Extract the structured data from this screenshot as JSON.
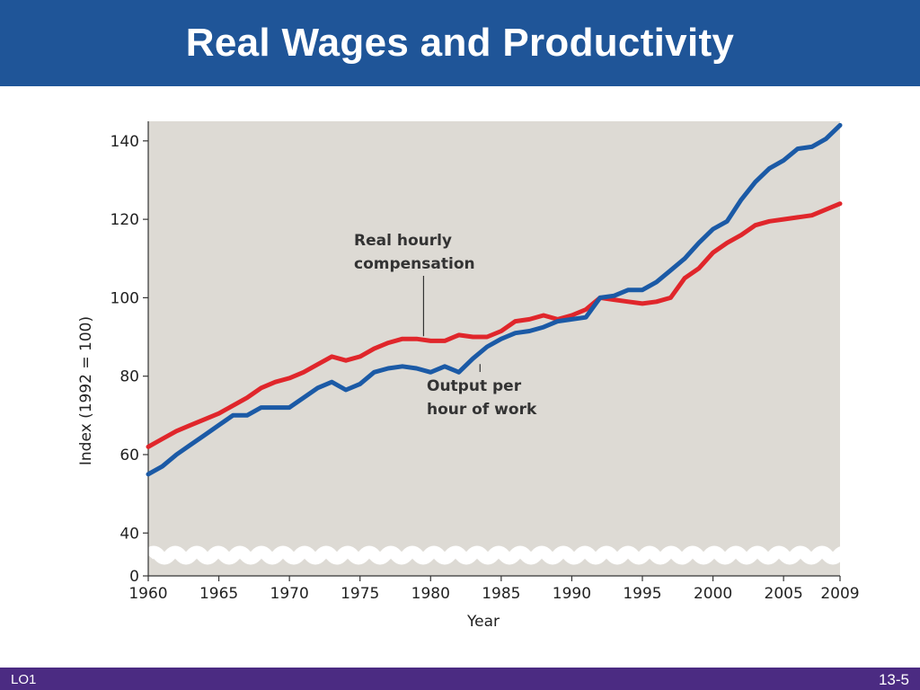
{
  "slide": {
    "title": "Real Wages and Productivity",
    "lo_label": "LO1",
    "page_number": "13-5"
  },
  "colors": {
    "title_bar": "#1f5598",
    "footer_bar": "#4b2b82",
    "plot_bg": "#dddad4",
    "compensation_line": "#e0262b",
    "output_line": "#1b5aa6"
  },
  "chart_data": {
    "type": "line",
    "title": "",
    "xlabel": "Year",
    "ylabel": "Index (1992 = 100)",
    "xlim": [
      1960,
      2009
    ],
    "ylim": [
      0,
      145
    ],
    "axis_break": [
      5,
      38
    ],
    "x_ticks": [
      1960,
      1965,
      1970,
      1975,
      1980,
      1985,
      1990,
      1995,
      2000,
      2005,
      2009
    ],
    "x_tick_labels": [
      "1960",
      "1965",
      "1970",
      "1975",
      "1980",
      "1985",
      "1990",
      "1995",
      "2000",
      "2005",
      "2009"
    ],
    "y_ticks": [
      0,
      40,
      60,
      80,
      100,
      120,
      140
    ],
    "y_tick_labels": [
      "0",
      "40",
      "60",
      "80",
      "100",
      "120",
      "140"
    ],
    "grid": false,
    "series": [
      {
        "name": "Real hourly compensation",
        "annotation": "Real hourly compensation",
        "annotation_point": [
          1979.5,
          89.5
        ],
        "x": [
          1960,
          1961,
          1962,
          1963,
          1964,
          1965,
          1966,
          1967,
          1968,
          1969,
          1970,
          1971,
          1972,
          1973,
          1974,
          1975,
          1976,
          1977,
          1978,
          1979,
          1980,
          1981,
          1982,
          1983,
          1984,
          1985,
          1986,
          1987,
          1988,
          1989,
          1990,
          1991,
          1992,
          1993,
          1994,
          1995,
          1996,
          1997,
          1998,
          1999,
          2000,
          2001,
          2002,
          2003,
          2004,
          2005,
          2006,
          2007,
          2008,
          2009
        ],
        "values": [
          62,
          64,
          66,
          67.5,
          69,
          70.5,
          72.5,
          74.5,
          77,
          78.5,
          79.5,
          81,
          83,
          85,
          84,
          85,
          87,
          88.5,
          89.5,
          89.5,
          89,
          89,
          90.5,
          90,
          90,
          91.5,
          94,
          94.5,
          95.5,
          94.5,
          95.5,
          97,
          100,
          99.5,
          99,
          98.5,
          99,
          100,
          105,
          107.5,
          111.5,
          114,
          116,
          118.5,
          119.5,
          120,
          120.5,
          121,
          122.5,
          124
        ]
      },
      {
        "name": "Output per hour of work",
        "annotation": "Output per hour of work",
        "annotation_point": [
          1983.5,
          84
        ],
        "x": [
          1960,
          1961,
          1962,
          1963,
          1964,
          1965,
          1966,
          1967,
          1968,
          1969,
          1970,
          1971,
          1972,
          1973,
          1974,
          1975,
          1976,
          1977,
          1978,
          1979,
          1980,
          1981,
          1982,
          1983,
          1984,
          1985,
          1986,
          1987,
          1988,
          1989,
          1990,
          1991,
          1992,
          1993,
          1994,
          1995,
          1996,
          1997,
          1998,
          1999,
          2000,
          2001,
          2002,
          2003,
          2004,
          2005,
          2006,
          2007,
          2008,
          2009
        ],
        "values": [
          55,
          57,
          60,
          62.5,
          65,
          67.5,
          70,
          70,
          72,
          72,
          72,
          74.5,
          77,
          78.5,
          76.5,
          78,
          81,
          82,
          82.5,
          82,
          81,
          82.5,
          81,
          84.5,
          87.5,
          89.5,
          91,
          91.5,
          92.5,
          94,
          94.5,
          95,
          100,
          100.5,
          102,
          102,
          104,
          107,
          110,
          114,
          117.5,
          119.5,
          125,
          129.5,
          133,
          135,
          138,
          138.5,
          140.5,
          144
        ]
      }
    ]
  },
  "annotations": {
    "compensation_label": [
      "Real hourly",
      "compensation"
    ],
    "output_label": [
      "Output per",
      "hour of work"
    ]
  }
}
